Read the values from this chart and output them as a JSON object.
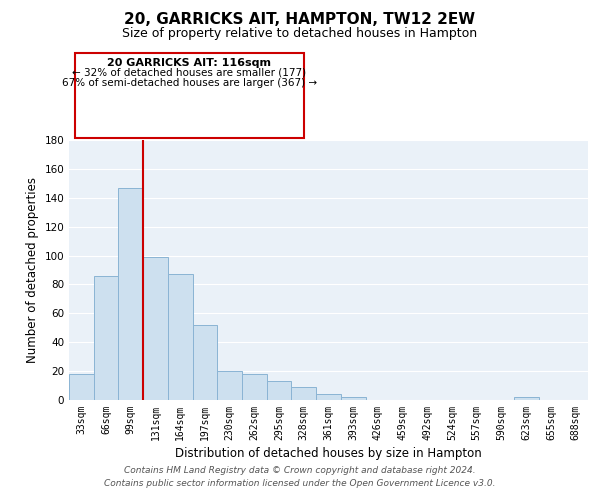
{
  "title": "20, GARRICKS AIT, HAMPTON, TW12 2EW",
  "subtitle": "Size of property relative to detached houses in Hampton",
  "xlabel": "Distribution of detached houses by size in Hampton",
  "ylabel": "Number of detached properties",
  "bar_labels": [
    "33sqm",
    "66sqm",
    "99sqm",
    "131sqm",
    "164sqm",
    "197sqm",
    "230sqm",
    "262sqm",
    "295sqm",
    "328sqm",
    "361sqm",
    "393sqm",
    "426sqm",
    "459sqm",
    "492sqm",
    "524sqm",
    "557sqm",
    "590sqm",
    "623sqm",
    "655sqm",
    "688sqm"
  ],
  "bar_values": [
    18,
    86,
    147,
    99,
    87,
    52,
    20,
    18,
    13,
    9,
    4,
    2,
    0,
    0,
    0,
    0,
    0,
    0,
    2,
    0,
    0
  ],
  "bar_color": "#cde0ef",
  "bar_edge_color": "#8ab4d4",
  "ylim": [
    0,
    180
  ],
  "yticks": [
    0,
    20,
    40,
    60,
    80,
    100,
    120,
    140,
    160,
    180
  ],
  "vline_color": "#cc0000",
  "annotation_title": "20 GARRICKS AIT: 116sqm",
  "annotation_line1": "← 32% of detached houses are smaller (177)",
  "annotation_line2": "67% of semi-detached houses are larger (367) →",
  "footer_line1": "Contains HM Land Registry data © Crown copyright and database right 2024.",
  "footer_line2": "Contains public sector information licensed under the Open Government Licence v3.0.",
  "plot_bg": "#eaf1f8",
  "grid_color": "#ffffff",
  "title_fontsize": 11,
  "subtitle_fontsize": 9,
  "axis_label_fontsize": 8.5,
  "tick_fontsize": 7,
  "footer_fontsize": 6.5
}
